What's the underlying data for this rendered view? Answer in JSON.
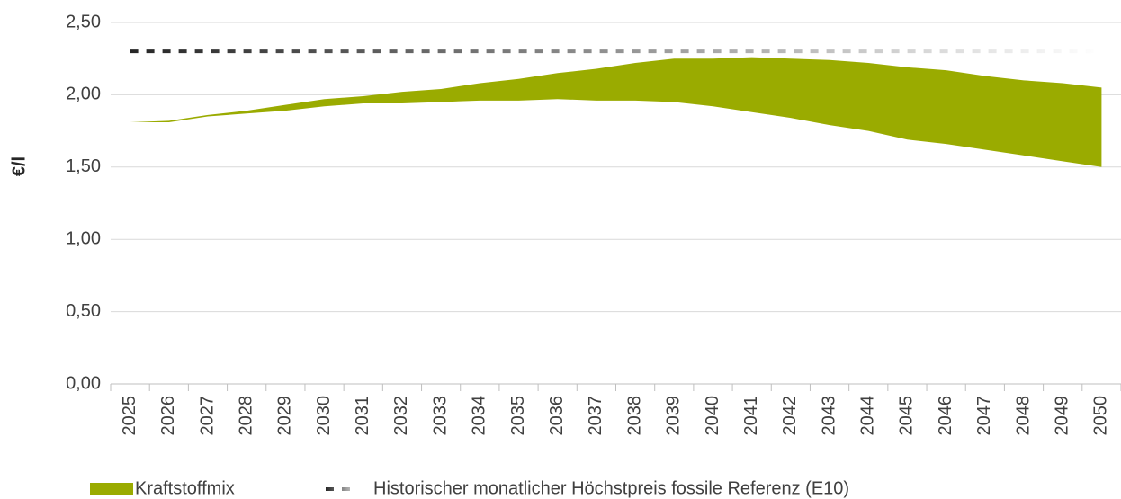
{
  "chart_data": {
    "type": "range_area",
    "y_label": "€/l",
    "categories": [
      "2025",
      "2026",
      "2027",
      "2028",
      "2029",
      "2030",
      "2031",
      "2032",
      "2033",
      "2034",
      "2035",
      "2036",
      "2037",
      "2038",
      "2039",
      "2040",
      "2041",
      "2042",
      "2043",
      "2044",
      "2045",
      "2046",
      "2047",
      "2048",
      "2049",
      "2050"
    ],
    "series": [
      {
        "name": "Kraftstoffmix",
        "color": "#9aab00",
        "low": [
          1.81,
          1.81,
          1.85,
          1.87,
          1.89,
          1.92,
          1.94,
          1.94,
          1.95,
          1.96,
          1.96,
          1.97,
          1.96,
          1.96,
          1.95,
          1.92,
          1.88,
          1.84,
          1.79,
          1.75,
          1.69,
          1.66,
          1.62,
          1.58,
          1.54,
          1.5
        ],
        "high": [
          1.81,
          1.82,
          1.86,
          1.89,
          1.93,
          1.97,
          1.99,
          2.02,
          2.04,
          2.08,
          2.11,
          2.15,
          2.18,
          2.22,
          2.25,
          2.25,
          2.26,
          2.25,
          2.24,
          2.22,
          2.19,
          2.17,
          2.13,
          2.1,
          2.08,
          2.05
        ]
      },
      {
        "name": "Historischer monatlicher Höchstpreis fossile Referenz (E10)",
        "color": "#262626",
        "type": "line",
        "dashed": true,
        "values": [
          2.3,
          2.3,
          2.3,
          2.3,
          2.3,
          2.3,
          2.3,
          2.3,
          2.3,
          2.3,
          2.3,
          2.3,
          2.3,
          2.3,
          2.3,
          2.3,
          2.3,
          2.3,
          2.3,
          2.3,
          2.3,
          2.3,
          2.3,
          2.3,
          2.3,
          2.3
        ]
      }
    ],
    "ylim": [
      0,
      2.5
    ],
    "yticks": [
      {
        "value": 0,
        "label": "0,00"
      },
      {
        "value": 0.5,
        "label": "0,50"
      },
      {
        "value": 1,
        "label": "1,00"
      },
      {
        "value": 1.5,
        "label": "1,50"
      },
      {
        "value": 2,
        "label": "2,00"
      },
      {
        "value": 2.5,
        "label": "2,50"
      }
    ],
    "grid": true,
    "legend": "bottom"
  }
}
